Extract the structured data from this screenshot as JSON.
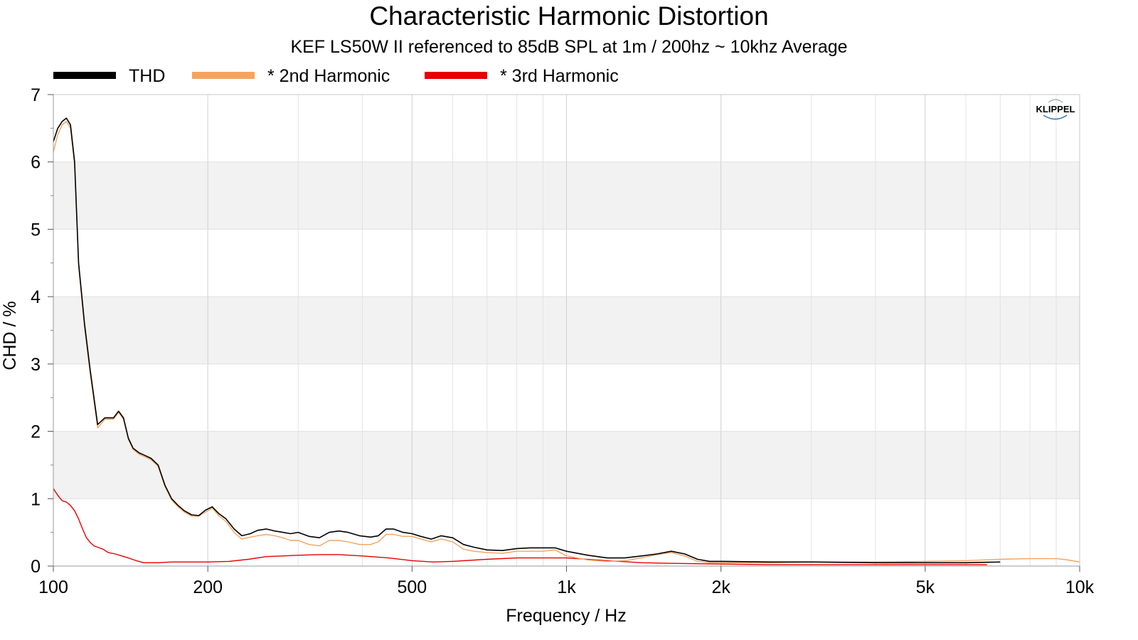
{
  "colors": {
    "thd": "#000000",
    "h2": "#f4a460",
    "h3": "#e60000",
    "band": "#f2f2f2",
    "grid": "#d9d9d9",
    "logo": "#3b7fb5"
  },
  "logo_text": "KLIPPEL",
  "chart_data": {
    "type": "line",
    "title": "Characteristic Harmonic Distortion",
    "subtitle": "KEF LS50W II referenced to 85dB SPL at 1m / 200hz ~ 10khz Average",
    "xlabel": "Frequency / Hz",
    "ylabel": "CHD / %",
    "xscale": "log",
    "xlim": [
      100,
      10000
    ],
    "ylim": [
      0,
      7
    ],
    "x_ticks": [
      100,
      200,
      500,
      1000,
      2000,
      5000,
      10000
    ],
    "x_tick_labels": [
      "100",
      "200",
      "500",
      "1k",
      "2k",
      "5k",
      "10k"
    ],
    "y_ticks": [
      0,
      1,
      2,
      3,
      4,
      5,
      6,
      7
    ],
    "y_tick_labels": [
      "0",
      "1",
      "2",
      "3",
      "4",
      "5",
      "6",
      "7"
    ],
    "legend_placement": "top-left",
    "grid": true,
    "series": [
      {
        "name": "THD",
        "color": "#000000",
        "x": [
          100,
          102,
          104,
          106,
          108,
          110,
          112,
          115,
          118,
          122,
          126,
          128,
          131,
          134,
          137,
          140,
          143,
          147,
          150,
          155,
          160,
          165,
          170,
          175,
          180,
          186,
          192,
          198,
          204,
          210,
          217,
          225,
          233,
          242,
          250,
          260,
          270,
          280,
          290,
          300,
          315,
          330,
          345,
          360,
          375,
          395,
          415,
          430,
          445,
          460,
          480,
          500,
          520,
          545,
          570,
          600,
          630,
          660,
          700,
          750,
          800,
          850,
          900,
          950,
          1000,
          1100,
          1200,
          1300,
          1400,
          1500,
          1600,
          1700,
          1800,
          1900,
          2000,
          2500,
          3000,
          4000,
          5000,
          6000,
          7000
        ],
        "y": [
          6.3,
          6.5,
          6.6,
          6.65,
          6.55,
          6.0,
          4.5,
          3.6,
          2.9,
          2.1,
          2.2,
          2.2,
          2.2,
          2.3,
          2.2,
          1.9,
          1.75,
          1.68,
          1.65,
          1.6,
          1.5,
          1.2,
          1.0,
          0.9,
          0.82,
          0.76,
          0.75,
          0.83,
          0.88,
          0.78,
          0.7,
          0.55,
          0.45,
          0.48,
          0.53,
          0.55,
          0.52,
          0.5,
          0.48,
          0.5,
          0.44,
          0.42,
          0.5,
          0.52,
          0.5,
          0.45,
          0.43,
          0.45,
          0.55,
          0.55,
          0.5,
          0.48,
          0.44,
          0.4,
          0.45,
          0.42,
          0.32,
          0.28,
          0.24,
          0.23,
          0.26,
          0.27,
          0.27,
          0.27,
          0.22,
          0.16,
          0.12,
          0.12,
          0.15,
          0.18,
          0.22,
          0.18,
          0.1,
          0.07,
          0.07,
          0.06,
          0.06,
          0.05,
          0.05,
          0.05,
          0.06
        ]
      },
      {
        "name": "* 2nd Harmonic",
        "color": "#f4a460",
        "x": [
          100,
          102,
          104,
          106,
          108,
          110,
          112,
          115,
          118,
          122,
          126,
          128,
          131,
          134,
          137,
          140,
          143,
          147,
          150,
          155,
          160,
          165,
          170,
          175,
          180,
          186,
          192,
          198,
          204,
          210,
          217,
          225,
          233,
          242,
          250,
          260,
          270,
          280,
          290,
          300,
          315,
          330,
          345,
          360,
          375,
          395,
          415,
          430,
          445,
          460,
          480,
          500,
          520,
          545,
          570,
          600,
          630,
          660,
          700,
          750,
          800,
          850,
          900,
          950,
          1000,
          1100,
          1200,
          1300,
          1400,
          1500,
          1600,
          1700,
          1800,
          1900,
          2000,
          2500,
          3000,
          4000,
          5000,
          6000,
          7000,
          8000,
          9000,
          9500,
          10000
        ],
        "y": [
          6.15,
          6.4,
          6.55,
          6.6,
          6.5,
          5.95,
          4.45,
          3.55,
          2.85,
          2.05,
          2.18,
          2.18,
          2.18,
          2.28,
          2.18,
          1.88,
          1.73,
          1.66,
          1.63,
          1.58,
          1.48,
          1.18,
          0.98,
          0.88,
          0.8,
          0.74,
          0.74,
          0.8,
          0.86,
          0.75,
          0.66,
          0.5,
          0.4,
          0.43,
          0.45,
          0.47,
          0.45,
          0.42,
          0.38,
          0.38,
          0.32,
          0.3,
          0.38,
          0.38,
          0.36,
          0.32,
          0.32,
          0.36,
          0.47,
          0.47,
          0.44,
          0.44,
          0.4,
          0.36,
          0.4,
          0.36,
          0.25,
          0.22,
          0.2,
          0.19,
          0.22,
          0.22,
          0.22,
          0.24,
          0.15,
          0.09,
          0.07,
          0.08,
          0.12,
          0.17,
          0.2,
          0.15,
          0.07,
          0.05,
          0.05,
          0.05,
          0.06,
          0.06,
          0.07,
          0.08,
          0.1,
          0.11,
          0.11,
          0.09,
          0.06
        ]
      },
      {
        "name": "* 3rd Harmonic",
        "color": "#e60000",
        "x": [
          100,
          102,
          104,
          106,
          108,
          110,
          112,
          114,
          116,
          118,
          120,
          122,
          125,
          128,
          132,
          136,
          140,
          145,
          150,
          160,
          170,
          180,
          200,
          220,
          240,
          260,
          280,
          300,
          330,
          360,
          400,
          450,
          500,
          550,
          600,
          700,
          800,
          900,
          1000,
          1200,
          1400,
          1600,
          2000,
          2500,
          3000,
          4000,
          5000,
          6000,
          6600
        ],
        "y": [
          1.15,
          1.05,
          0.97,
          0.95,
          0.9,
          0.82,
          0.7,
          0.55,
          0.42,
          0.35,
          0.3,
          0.28,
          0.25,
          0.2,
          0.18,
          0.15,
          0.12,
          0.08,
          0.05,
          0.05,
          0.06,
          0.06,
          0.06,
          0.07,
          0.1,
          0.14,
          0.15,
          0.16,
          0.17,
          0.17,
          0.15,
          0.12,
          0.08,
          0.06,
          0.07,
          0.1,
          0.12,
          0.12,
          0.12,
          0.08,
          0.05,
          0.04,
          0.03,
          0.02,
          0.02,
          0.02,
          0.02,
          0.02,
          0.02
        ]
      }
    ]
  }
}
